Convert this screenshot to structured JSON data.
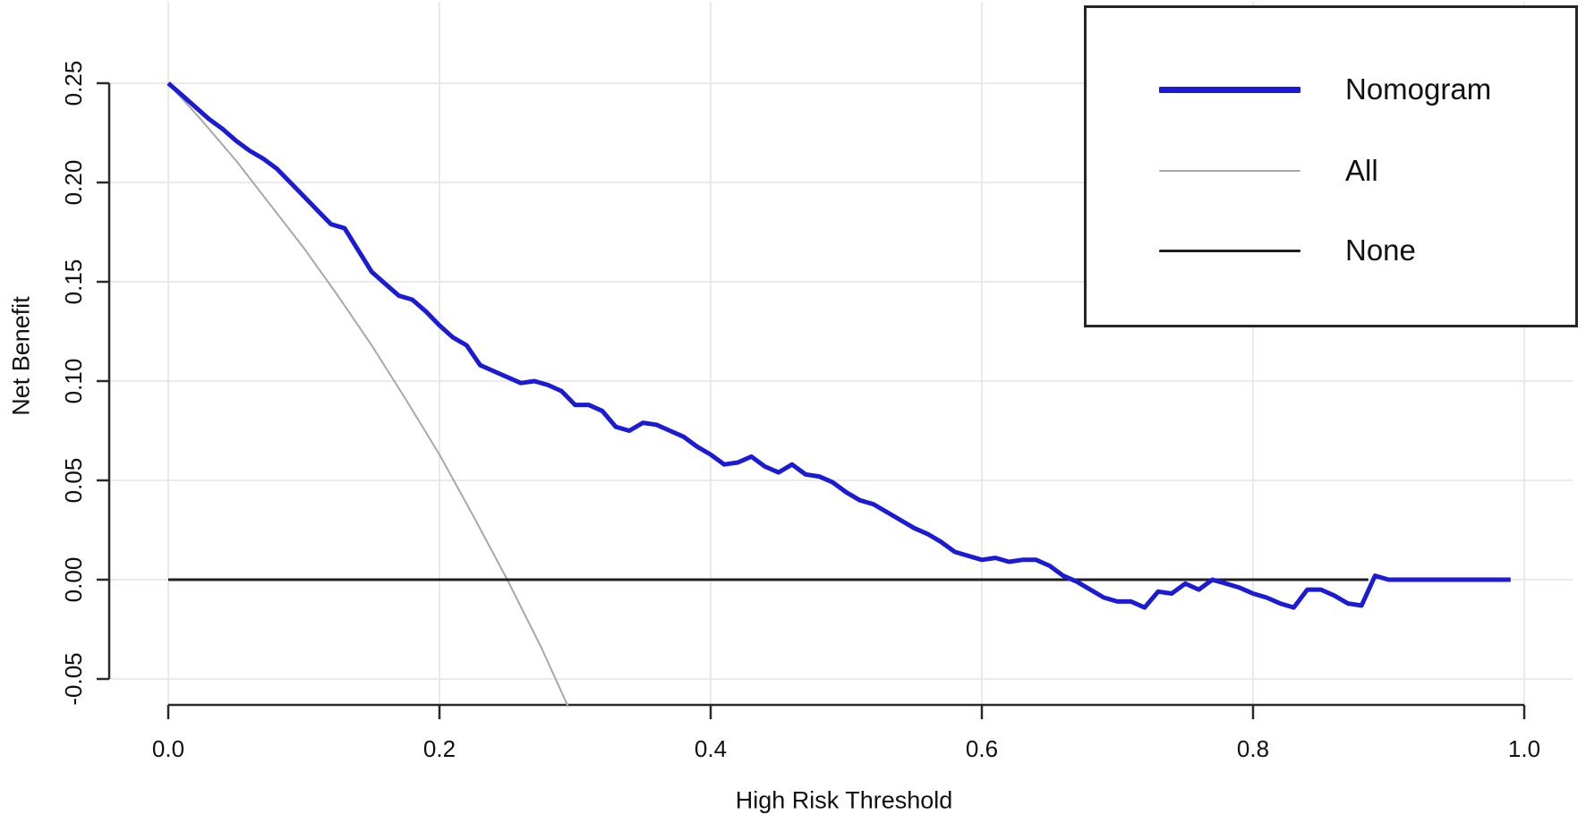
{
  "chart_data": {
    "type": "line",
    "title": "",
    "xlabel": "High Risk Threshold",
    "ylabel": "Net Benefit",
    "xlim": [
      0.0,
      1.0
    ],
    "ylim": [
      -0.065,
      0.29
    ],
    "grid": true,
    "grid_color": "#e4e4e4",
    "axis_color": "#2a2a2a",
    "text_color": "#111111",
    "background_color": "#ffffff",
    "x_ticks": {
      "values": [
        0.0,
        0.2,
        0.4,
        0.6,
        0.8,
        1.0
      ],
      "labels": [
        "0.0",
        "0.2",
        "0.4",
        "0.6",
        "0.8",
        "1.0"
      ]
    },
    "y_ticks": {
      "values": [
        -0.05,
        0.0,
        0.05,
        0.1,
        0.15,
        0.2,
        0.25
      ],
      "labels": [
        "-0.05",
        "0.00",
        "0.05",
        "0.10",
        "0.15",
        "0.20",
        "0.25"
      ]
    },
    "legend": {
      "position": "top-right",
      "entries": [
        {
          "label": "Nomogram",
          "color": "#1b1bd6",
          "line_width": 7
        },
        {
          "label": "All",
          "color": "#a8a8a8",
          "line_width": 2
        },
        {
          "label": "None",
          "color": "#1f1f1f",
          "line_width": 3
        }
      ]
    },
    "series": [
      {
        "name": "Nomogram",
        "color": "#1b1bd6",
        "width": 5,
        "x": [
          0.0,
          0.01,
          0.02,
          0.03,
          0.04,
          0.05,
          0.06,
          0.07,
          0.08,
          0.09,
          0.1,
          0.11,
          0.12,
          0.13,
          0.14,
          0.15,
          0.16,
          0.17,
          0.18,
          0.19,
          0.2,
          0.21,
          0.22,
          0.23,
          0.24,
          0.25,
          0.26,
          0.27,
          0.28,
          0.29,
          0.3,
          0.31,
          0.32,
          0.33,
          0.34,
          0.35,
          0.36,
          0.37,
          0.38,
          0.39,
          0.4,
          0.41,
          0.42,
          0.43,
          0.44,
          0.45,
          0.46,
          0.47,
          0.48,
          0.49,
          0.5,
          0.51,
          0.52,
          0.53,
          0.54,
          0.55,
          0.56,
          0.57,
          0.58,
          0.59,
          0.6,
          0.61,
          0.62,
          0.63,
          0.64,
          0.65,
          0.66,
          0.67,
          0.68,
          0.69,
          0.7,
          0.71,
          0.72,
          0.73,
          0.74,
          0.75,
          0.76,
          0.77,
          0.78,
          0.79,
          0.8,
          0.81,
          0.82,
          0.83,
          0.84,
          0.85,
          0.86,
          0.87,
          0.88,
          0.89,
          0.9,
          0.91,
          0.92,
          0.93,
          0.94,
          0.95,
          0.96,
          0.97,
          0.98,
          0.99
        ],
        "y": [
          0.25,
          0.244,
          0.238,
          0.232,
          0.227,
          0.221,
          0.216,
          0.212,
          0.207,
          0.2,
          0.193,
          0.186,
          0.179,
          0.177,
          0.166,
          0.155,
          0.149,
          0.143,
          0.141,
          0.135,
          0.128,
          0.122,
          0.118,
          0.108,
          0.105,
          0.102,
          0.099,
          0.1,
          0.098,
          0.095,
          0.088,
          0.088,
          0.085,
          0.077,
          0.075,
          0.079,
          0.078,
          0.075,
          0.072,
          0.067,
          0.063,
          0.058,
          0.059,
          0.062,
          0.057,
          0.054,
          0.058,
          0.053,
          0.052,
          0.049,
          0.044,
          0.04,
          0.038,
          0.034,
          0.03,
          0.026,
          0.023,
          0.019,
          0.014,
          0.012,
          0.01,
          0.011,
          0.009,
          0.01,
          0.01,
          0.007,
          0.002,
          -0.001,
          -0.005,
          -0.009,
          -0.011,
          -0.011,
          -0.014,
          -0.006,
          -0.007,
          -0.002,
          -0.005,
          0.0,
          -0.002,
          -0.004,
          -0.007,
          -0.009,
          -0.012,
          -0.014,
          -0.005,
          -0.005,
          -0.008,
          -0.012,
          -0.013,
          0.002,
          0.0,
          0.0,
          0.0,
          0.0,
          0.0,
          0.0,
          0.0,
          0.0,
          0.0,
          0.0
        ]
      },
      {
        "name": "All",
        "color": "#a8a8a8",
        "width": 2,
        "x": [
          0.0,
          0.025,
          0.05,
          0.075,
          0.1,
          0.125,
          0.15,
          0.175,
          0.2,
          0.225,
          0.25,
          0.275,
          0.295
        ],
        "y": [
          0.25,
          0.231,
          0.211,
          0.189,
          0.167,
          0.143,
          0.118,
          0.091,
          0.063,
          0.032,
          0.0,
          -0.034,
          -0.064
        ]
      },
      {
        "name": "None",
        "color": "#1f1f1f",
        "width": 3,
        "x": [
          0.0,
          0.885
        ],
        "y": [
          0.0,
          0.0
        ]
      }
    ]
  }
}
